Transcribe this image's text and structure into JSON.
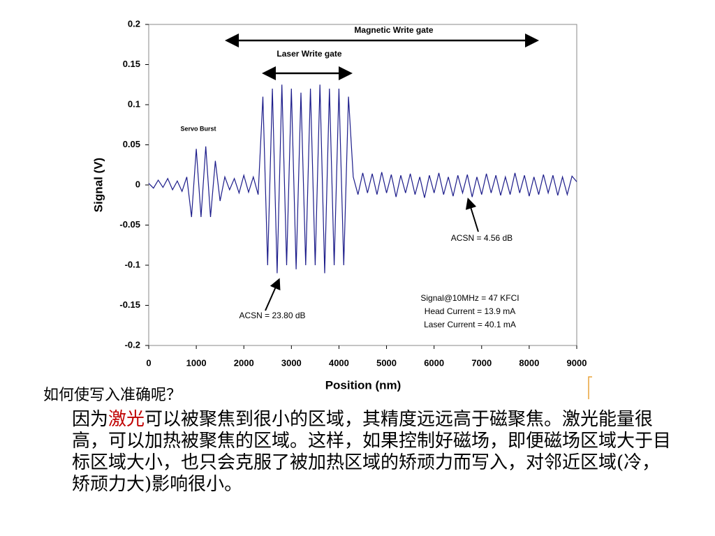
{
  "chart_data": {
    "type": "line",
    "xlabel": "Position (nm)",
    "ylabel": "Signal (V)",
    "x": [
      0,
      100,
      200,
      300,
      400,
      500,
      600,
      700,
      800,
      900,
      1000,
      1100,
      1200,
      1300,
      1400,
      1500,
      1600,
      1700,
      1800,
      1900,
      2000,
      2100,
      2200,
      2300,
      2400,
      2500,
      2600,
      2700,
      2800,
      2900,
      3000,
      3100,
      3200,
      3300,
      3400,
      3500,
      3600,
      3700,
      3800,
      3900,
      4000,
      4100,
      4200,
      4300,
      4400,
      4500,
      4600,
      4700,
      4800,
      4900,
      5000,
      5100,
      5200,
      5300,
      5400,
      5500,
      5600,
      5700,
      5800,
      5900,
      6000,
      6100,
      6200,
      6300,
      6400,
      6500,
      6600,
      6700,
      6800,
      6900,
      7000,
      7100,
      7200,
      7300,
      7400,
      7500,
      7600,
      7700,
      7800,
      7900,
      8000,
      8100,
      8200,
      8300,
      8400,
      8500,
      8600,
      8700,
      8800,
      8900,
      9000
    ],
    "series": [
      {
        "color": "#1c1c8a",
        "values": [
          0.002,
          -0.004,
          0.006,
          -0.003,
          0.008,
          -0.006,
          0.005,
          -0.008,
          0.01,
          -0.04,
          0.045,
          -0.04,
          0.048,
          -0.04,
          0.03,
          -0.02,
          0.01,
          -0.006,
          0.008,
          -0.01,
          0.012,
          -0.009,
          0.01,
          -0.012,
          0.11,
          -0.1,
          0.12,
          -0.11,
          0.125,
          -0.1,
          0.12,
          -0.105,
          0.115,
          -0.1,
          0.12,
          -0.1,
          0.125,
          -0.11,
          0.12,
          -0.1,
          0.12,
          -0.1,
          0.11,
          0.01,
          -0.012,
          0.015,
          -0.01,
          0.014,
          -0.012,
          0.016,
          -0.01,
          0.013,
          -0.015,
          0.012,
          -0.01,
          0.014,
          -0.012,
          0.01,
          -0.016,
          0.012,
          -0.01,
          0.015,
          -0.012,
          0.01,
          -0.014,
          0.012,
          -0.01,
          0.013,
          -0.015,
          0.01,
          -0.012,
          0.014,
          -0.01,
          0.012,
          -0.013,
          0.01,
          -0.012,
          0.015,
          -0.01,
          0.012,
          -0.014,
          0.01,
          -0.012,
          0.013,
          -0.01,
          0.012,
          -0.013,
          0.01,
          -0.012,
          0.011,
          0.004
        ]
      }
    ],
    "xlim": [
      0,
      9000
    ],
    "xticks": [
      0,
      1000,
      2000,
      3000,
      4000,
      5000,
      6000,
      7000,
      8000,
      9000
    ],
    "ylim": [
      -0.2,
      0.2
    ],
    "yticks": [
      0.2,
      0.15,
      0.1,
      0.05,
      0,
      -0.05,
      -0.1,
      -0.15,
      -0.2
    ],
    "annotations": [
      "Magnetic Write gate",
      "Laser Write gate",
      "Servo Burst",
      "ACSN = 4.56 dB",
      "ACSN = 23.80 dB",
      "Signal@10MHz = 47 KFCI",
      "Head Current = 13.9 mA",
      "Laser Current = 40.1 mA"
    ]
  },
  "text": {
    "question": "如何使写入准确呢？",
    "paragraph": [
      "因为",
      "激光",
      "可以被聚焦到很小的区域，其精度远远高于磁聚焦。激光能量很高，可以加热被聚焦的区域。这样，如果控制好磁场，即便磁场区域大于目标区域大小，也只会克服了被加热区域的矫顽力而写入，对邻近区域(冷，矫顽力大)影响很小。"
    ]
  }
}
